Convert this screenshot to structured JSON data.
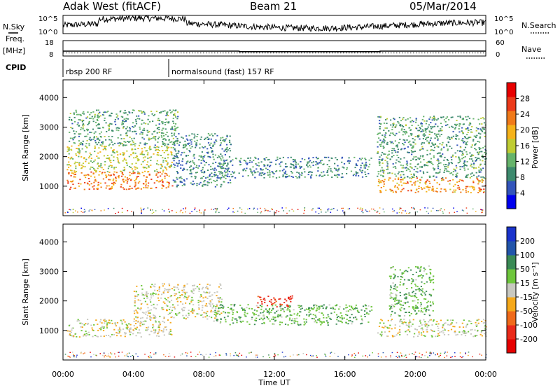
{
  "header": {
    "title": "Adak West (fitACF)",
    "beam": "Beam 21",
    "date": "05/Mar/2014"
  },
  "noise_panel": {
    "left_label": "N.Sky",
    "right_label": "N.Search",
    "left_ticks": [
      "10^5",
      "10^0"
    ],
    "right_ticks": [
      "10^5",
      "10^0"
    ]
  },
  "freq_panel": {
    "left_label_1": "Freq.",
    "left_label_2": "[MHz]",
    "right_label": "Nave",
    "left_ticks": [
      "18",
      "8"
    ],
    "right_ticks": [
      "60",
      "0"
    ],
    "freq_line": [
      {
        "t": 0,
        "v": 11
      },
      {
        "t": 10,
        "v": 11
      },
      {
        "t": 10,
        "v": 10.5
      },
      {
        "t": 18,
        "v": 10.5
      },
      {
        "t": 18,
        "v": 11
      },
      {
        "t": 24,
        "v": 11
      }
    ],
    "nave_level": 12
  },
  "cpid_panel": {
    "label": "CPID",
    "segments": [
      {
        "start": 0,
        "end": 6,
        "text": "rbsp 200 RF"
      },
      {
        "start": 6,
        "end": 24,
        "text": "normalsound (fast) 157 RF"
      }
    ]
  },
  "x_axis": {
    "title": "Time UT",
    "ticks": [
      "00:00",
      "04:00",
      "08:00",
      "12:00",
      "16:00",
      "20:00",
      "00:00"
    ]
  },
  "chart_data": [
    {
      "type": "heatmap",
      "title": "",
      "ylabel": "Slant Range [km]",
      "xlabel": "Time UT",
      "xlim": [
        0,
        24
      ],
      "ylim": [
        0,
        4600
      ],
      "yticks": [
        "1000",
        "2000",
        "3000",
        "4000"
      ],
      "colorbar": {
        "label": "Power [dB]",
        "ticks": [
          "4",
          "8",
          "12",
          "16",
          "20",
          "24",
          "28"
        ],
        "colors": [
          "#0000ee",
          "#3355bb",
          "#3d8a6e",
          "#66b36b",
          "#bfcc33",
          "#f5b21a",
          "#f07a1a",
          "#ec3a1a",
          "#e80000"
        ]
      },
      "regions": [
        {
          "t0": 0.2,
          "t1": 6.2,
          "r0": 900,
          "r1": 1500,
          "value": 28
        },
        {
          "t0": 0.2,
          "t1": 6.2,
          "r0": 1500,
          "r1": 2400,
          "value": 20
        },
        {
          "t0": 0.3,
          "t1": 6.5,
          "r0": 2400,
          "r1": 3600,
          "value": 14
        },
        {
          "t0": 6.2,
          "t1": 9.5,
          "r0": 1000,
          "r1": 2800,
          "value": 12
        },
        {
          "t0": 8.5,
          "t1": 17.5,
          "r0": 1300,
          "r1": 2000,
          "value": 12
        },
        {
          "t0": 17.8,
          "t1": 24,
          "r0": 800,
          "r1": 1300,
          "value": 26
        },
        {
          "t0": 17.8,
          "t1": 24,
          "r0": 1300,
          "r1": 3400,
          "value": 14
        }
      ]
    },
    {
      "type": "heatmap",
      "title": "",
      "ylabel": "Slant Range [km]",
      "xlabel": "Time UT",
      "xlim": [
        0,
        24
      ],
      "ylim": [
        0,
        4600
      ],
      "yticks": [
        "1000",
        "2000",
        "3000",
        "4000"
      ],
      "colorbar": {
        "label": "Velocity [m s⁻¹]",
        "ticks": [
          "200",
          "100",
          "50",
          "15",
          "-15",
          "-50",
          "-100",
          "-200"
        ],
        "colors": [
          "#1a33cc",
          "#2255aa",
          "#3a8a55",
          "#6ec63c",
          "#c8c8c0",
          "#f5a81a",
          "#f06a1a",
          "#ea2a1a",
          "#e60000"
        ]
      },
      "regions": [
        {
          "t0": 0.2,
          "t1": 6.2,
          "r0": 800,
          "r1": 1400,
          "value": 0
        },
        {
          "t0": 4.0,
          "t1": 9.0,
          "r0": 1400,
          "r1": 2600,
          "value": 0
        },
        {
          "t0": 8.5,
          "t1": 17.5,
          "r0": 1200,
          "r1": 1900,
          "value": 40
        },
        {
          "t0": 11.0,
          "t1": 13.0,
          "r0": 1800,
          "r1": 2200,
          "value": -120
        },
        {
          "t0": 17.8,
          "t1": 24,
          "r0": 800,
          "r1": 1400,
          "value": 0
        },
        {
          "t0": 18.5,
          "t1": 21.0,
          "r0": 1500,
          "r1": 3200,
          "value": 40
        }
      ]
    }
  ],
  "colors": {
    "background": "#ffffff",
    "axes": "#000000"
  }
}
